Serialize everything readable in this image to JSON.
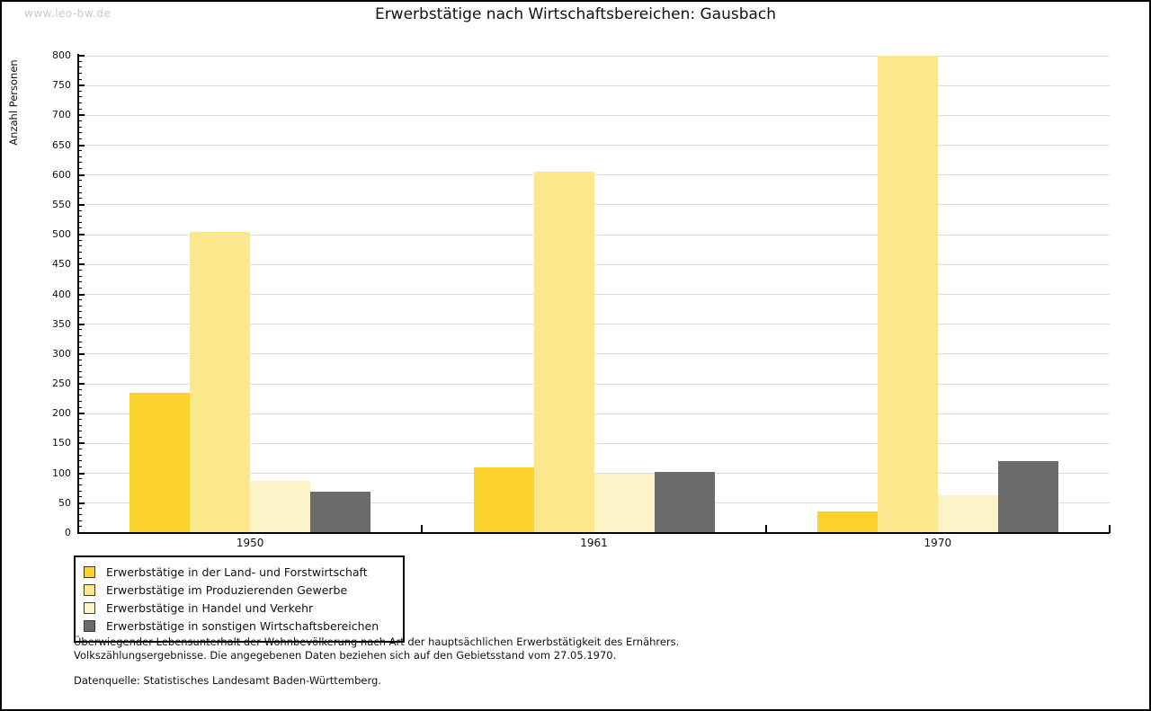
{
  "watermark": "www.leo-bw.de",
  "title": "Erwerbstätige nach Wirtschaftsbereichen: Gausbach",
  "chart_data": {
    "type": "bar",
    "title": "Erwerbstätige nach Wirtschaftsbereichen: Gausbach",
    "xlabel": "",
    "ylabel": "Anzahl Personen",
    "categories": [
      "1950",
      "1961",
      "1970"
    ],
    "series": [
      {
        "name": "Erwerbstätige in der Land- und Forstwirtschaft",
        "color": "#FCD32C",
        "values": [
          235,
          110,
          36
        ]
      },
      {
        "name": "Erwerbstätige im Produzierenden Gewerbe",
        "color": "#FBE88C",
        "values": [
          505,
          605,
          800
        ]
      },
      {
        "name": "Erwerbstätige in Handel und Verkehr",
        "color": "#FBF3C6",
        "values": [
          88,
          100,
          63
        ]
      },
      {
        "name": "Erwerbstätige in sonstigen Wirtschaftsbereichen",
        "color": "#6B6B6B",
        "values": [
          70,
          103,
          120
        ]
      }
    ],
    "ylim": [
      0,
      800
    ],
    "yticks": [
      0,
      50,
      100,
      150,
      200,
      250,
      300,
      350,
      400,
      450,
      500,
      550,
      600,
      650,
      700,
      750,
      800
    ],
    "minor_tick_step": 10,
    "grid": "horizontal-major",
    "gridline_color": "#dcdcdc",
    "legend_position": "bottom-left"
  },
  "footnotes": {
    "line1": "Überwiegender Lebensunterhalt der Wohnbevölkerung nach Art der hauptsächlichen Erwerbstätigkeit des Ernährers.",
    "line2": "Volkszählungsergebnisse. Die angegebenen Daten beziehen sich auf den Gebietsstand vom 27.05.1970.",
    "source": "Datenquelle: Statistisches Landesamt Baden-Württemberg."
  }
}
